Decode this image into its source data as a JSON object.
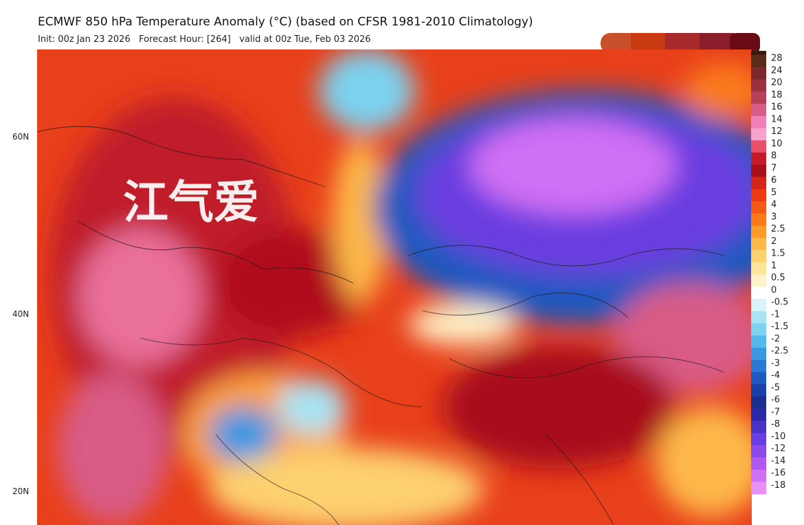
{
  "header": {
    "title": "ECMWF 850 hPa Temperature Anomaly (°C) (based on CFSR 1981-2010 Climatology)",
    "subtitle": "Init: 00z Jan 23 2026   Forecast Hour: [264]   valid at 00z Tue, Feb 03 2026"
  },
  "map": {
    "latitude_labels": [
      "60N",
      "40N",
      "20N"
    ],
    "watermark": "江气爱"
  },
  "colorbar": {
    "levels": [
      {
        "value": 28,
        "color": "#5a2a1a"
      },
      {
        "value": 24,
        "color": "#7a2a2a"
      },
      {
        "value": 20,
        "color": "#9a3040"
      },
      {
        "value": 18,
        "color": "#b8405a"
      },
      {
        "value": 16,
        "color": "#d85c86"
      },
      {
        "value": 14,
        "color": "#f080b8"
      },
      {
        "value": 12,
        "color": "#f7a2cf"
      },
      {
        "value": 10,
        "color": "#e8506a"
      },
      {
        "value": 8,
        "color": "#c41a2a"
      },
      {
        "value": 7,
        "color": "#a8101c"
      },
      {
        "value": 6,
        "color": "#d42618"
      },
      {
        "value": 5,
        "color": "#ec3a12"
      },
      {
        "value": 4,
        "color": "#f45a14"
      },
      {
        "value": 3,
        "color": "#fa7a1a"
      },
      {
        "value": 2.5,
        "color": "#fc9a2a"
      },
      {
        "value": 2,
        "color": "#fdb84a"
      },
      {
        "value": 1.5,
        "color": "#fdd070"
      },
      {
        "value": 1,
        "color": "#fde49a"
      },
      {
        "value": 0.5,
        "color": "#fff2c8"
      },
      {
        "value": 0,
        "color": "#ffffff"
      },
      {
        "value": -0.5,
        "color": "#d8f4fa"
      },
      {
        "value": -1,
        "color": "#a8e4f4"
      },
      {
        "value": -1.5,
        "color": "#7cd2f0"
      },
      {
        "value": -2,
        "color": "#54b8ec"
      },
      {
        "value": -2.5,
        "color": "#3a98e2"
      },
      {
        "value": -3,
        "color": "#2a78d4"
      },
      {
        "value": -4,
        "color": "#1e58c0"
      },
      {
        "value": -5,
        "color": "#1a40a8"
      },
      {
        "value": -6,
        "color": "#1a2e8c"
      },
      {
        "value": -7,
        "color": "#2a2aa8"
      },
      {
        "value": -8,
        "color": "#4a34c8"
      },
      {
        "value": -10,
        "color": "#6a3ee0"
      },
      {
        "value": -12,
        "color": "#8c4aec"
      },
      {
        "value": -14,
        "color": "#b058f0"
      },
      {
        "value": -16,
        "color": "#d070f4"
      },
      {
        "value": -18,
        "color": "#e890f8"
      }
    ]
  }
}
